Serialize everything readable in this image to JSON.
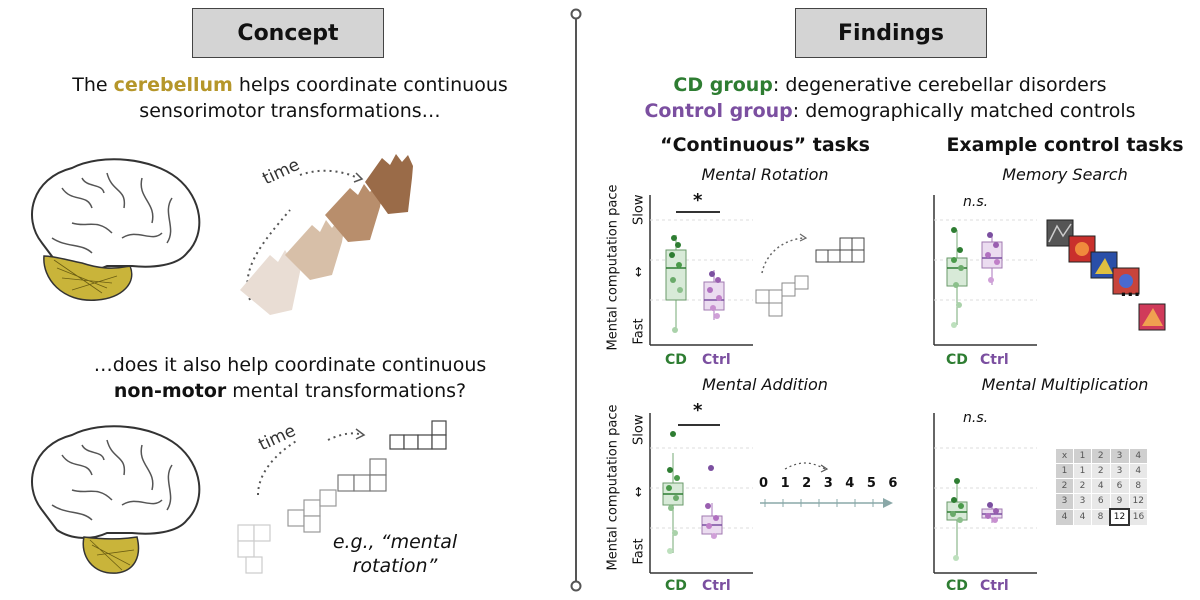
{
  "left": {
    "header": "Concept",
    "statement1_pre": "The ",
    "statement1_keyword": "cerebellum",
    "statement1_post": " helps coordinate continuous",
    "statement1_line2": "sensorimotor transformations…",
    "statement2_line1": "…does it also help coordinate continuous",
    "statement2_keyword": "non-motor",
    "statement2_post": " mental transformations?",
    "time_label": "time",
    "example_line1": "e.g., “mental",
    "example_line2": "rotation”"
  },
  "right": {
    "header": "Findings",
    "cd_group_name": "CD group",
    "cd_group_desc": ": degenerative cerebellar disorders",
    "control_group_name": "Control group",
    "control_group_desc": ": demographically matched controls",
    "continuous_title": "“Continuous” tasks",
    "control_tasks_title": "Example control tasks",
    "y_axis_label": "Mental computation pace",
    "y_slow": "Slow",
    "y_fast": "Fast",
    "y_arrow": "↔",
    "x_cd": "CD",
    "x_ctrl": "Ctrl",
    "significant": "*",
    "not_significant": "n.s.",
    "ellipsis": "...",
    "number_line": "0 1 2 3 4 5 6"
  },
  "tasks": [
    {
      "name": "Mental Rotation",
      "significance": "*"
    },
    {
      "name": "Memory Search",
      "significance": "n.s."
    },
    {
      "name": "Mental Addition",
      "significance": "*"
    },
    {
      "name": "Mental Multiplication",
      "significance": "n.s."
    }
  ],
  "multiplication_table": [
    [
      "x",
      "1",
      "2",
      "3",
      "4"
    ],
    [
      "1",
      "1",
      "2",
      "3",
      "4"
    ],
    [
      "2",
      "2",
      "4",
      "6",
      "8"
    ],
    [
      "3",
      "3",
      "6",
      "9",
      "12"
    ],
    [
      "4",
      "4",
      "8",
      "12",
      "16"
    ]
  ],
  "colors": {
    "cd": "#2e7d32",
    "ctrl": "#7b4fa0",
    "cerebellum": "#b5962a",
    "header_bg": "#d4d4d4"
  }
}
